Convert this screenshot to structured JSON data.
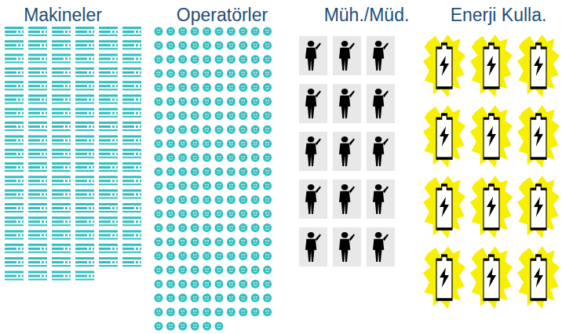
{
  "chart_data": {
    "type": "pictogram",
    "categories": [
      "Makineler",
      "Operatörler",
      "Müh./Müd.",
      "Enerji Kulla."
    ],
    "values": [
      112,
      216,
      15,
      12
    ],
    "colors": [
      "#33bfbf",
      "#33bfbf",
      "#000000",
      "#f7f000"
    ],
    "tick_labels": false
  }
}
